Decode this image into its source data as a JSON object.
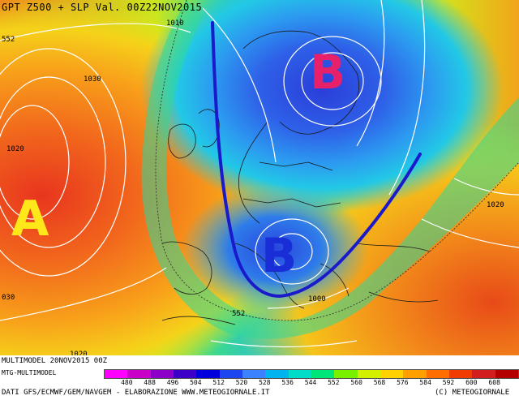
{
  "header": {
    "title": "GPT Z500 + SLP Val. 00Z22NOV2015"
  },
  "map": {
    "pressure_systems": [
      {
        "letter": "A",
        "color": "#FFE81A"
      },
      {
        "letter": "B",
        "color": "#E8206A"
      },
      {
        "letter": "B",
        "color": "#1A2ED8"
      }
    ],
    "isobar_labels": [
      "552",
      "1010",
      "1030",
      "1020",
      "1020",
      "030",
      "552",
      "1000",
      "1020"
    ],
    "trough_line_color": "#1A1ACC",
    "contour_color": "#FFFFFF"
  },
  "footer": {
    "model_line": "MULTIMODEL 20NOV2015 00Z",
    "sub_line": "MTG-MULTIMODEL",
    "credits": "DATI GFS/ECMWF/GEM/NAVGEM - ELABORAZIONE WWW.METEOGIORNALE.IT",
    "copyright": "(C) METEOGIORNALE",
    "colorbar": {
      "ticks": [
        "480",
        "488",
        "496",
        "504",
        "512",
        "520",
        "528",
        "536",
        "544",
        "552",
        "560",
        "568",
        "576",
        "584",
        "592",
        "600",
        "608"
      ],
      "colors": [
        "#FF00FF",
        "#C800C8",
        "#8C00C8",
        "#3C00C8",
        "#0000DC",
        "#1E46F0",
        "#3C82FF",
        "#00B4F0",
        "#00DCC8",
        "#00E678",
        "#78F000",
        "#D2F000",
        "#FFD200",
        "#FFA000",
        "#FF6E00",
        "#F03C00",
        "#D21E1E",
        "#B40000"
      ]
    }
  }
}
